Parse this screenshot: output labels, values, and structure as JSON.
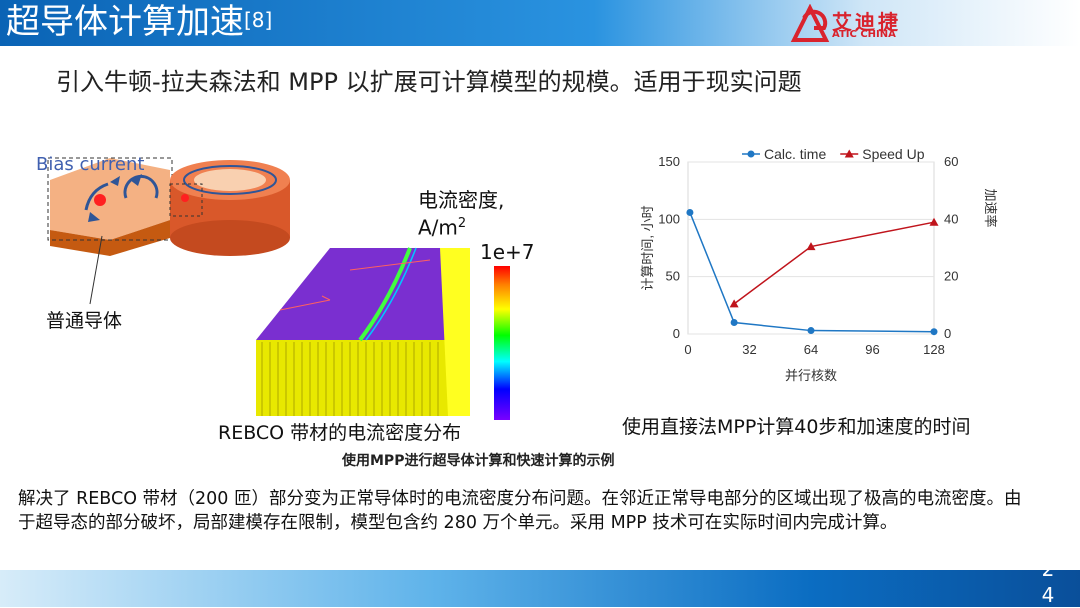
{
  "header": {
    "title": "超导体计算加速",
    "title_ref": "[8]"
  },
  "logo": {
    "name_cn": "艾迪捷",
    "name_en": "ATIC CHINA"
  },
  "subtitle": "引入牛顿-拉夫森法和 MPP 以扩展可计算模型的规模。适用于现实问题",
  "figure_left": {
    "bias_label": "Bias current",
    "normal_label": "普通导体",
    "density_label_line1": "电流密度,",
    "density_label_line2": "A/m",
    "density_label_exp": "2",
    "colorbar_max": "1e+7",
    "caption": "REBCO 带材的电流密度分布"
  },
  "figure_right": {
    "caption": "使用直接法MPP计算40步和加速度的时间"
  },
  "example_caption": "使用MPP进行超导体计算和快速计算的示例",
  "body_text": "解决了 REBCO 带材（200 匝）部分变为正常导体时的电流密度分布问题。在邻近正常导电部分的区域出现了极高的电流密度。由于超导态的部分破坏，局部建模存在限制，模型包含约 280 万个单元。采用 MPP 技术可在实际时间内完成计算。",
  "page_number": "24",
  "colors": {
    "calc_series": "#1f77c4",
    "speedup_series": "#c0141c",
    "title_bar": "#0a63b5"
  },
  "chart_data": {
    "type": "line",
    "xlabel": "并行核数",
    "ylabel_left": "计算时间, 小时",
    "ylabel_right": "加速率",
    "x_ticks": [
      "0",
      "32",
      "64",
      "96",
      "128"
    ],
    "y_left_ticks": [
      "0",
      "50",
      "100",
      "150"
    ],
    "y_right_ticks": [
      "0",
      "20",
      "40",
      "60"
    ],
    "xlim": [
      0,
      128
    ],
    "ylim_left": [
      0,
      150
    ],
    "ylim_right": [
      0,
      60
    ],
    "grid": "horizontal",
    "legend": "top",
    "series": [
      {
        "name": "Calc. time",
        "axis": "left",
        "marker": "circle",
        "x": [
          1,
          24,
          64,
          128
        ],
        "y": [
          106,
          10,
          3,
          2
        ]
      },
      {
        "name": "Speed Up",
        "axis": "right",
        "marker": "triangle",
        "x": [
          24,
          64,
          128
        ],
        "y": [
          10.5,
          30.5,
          39
        ]
      }
    ]
  }
}
